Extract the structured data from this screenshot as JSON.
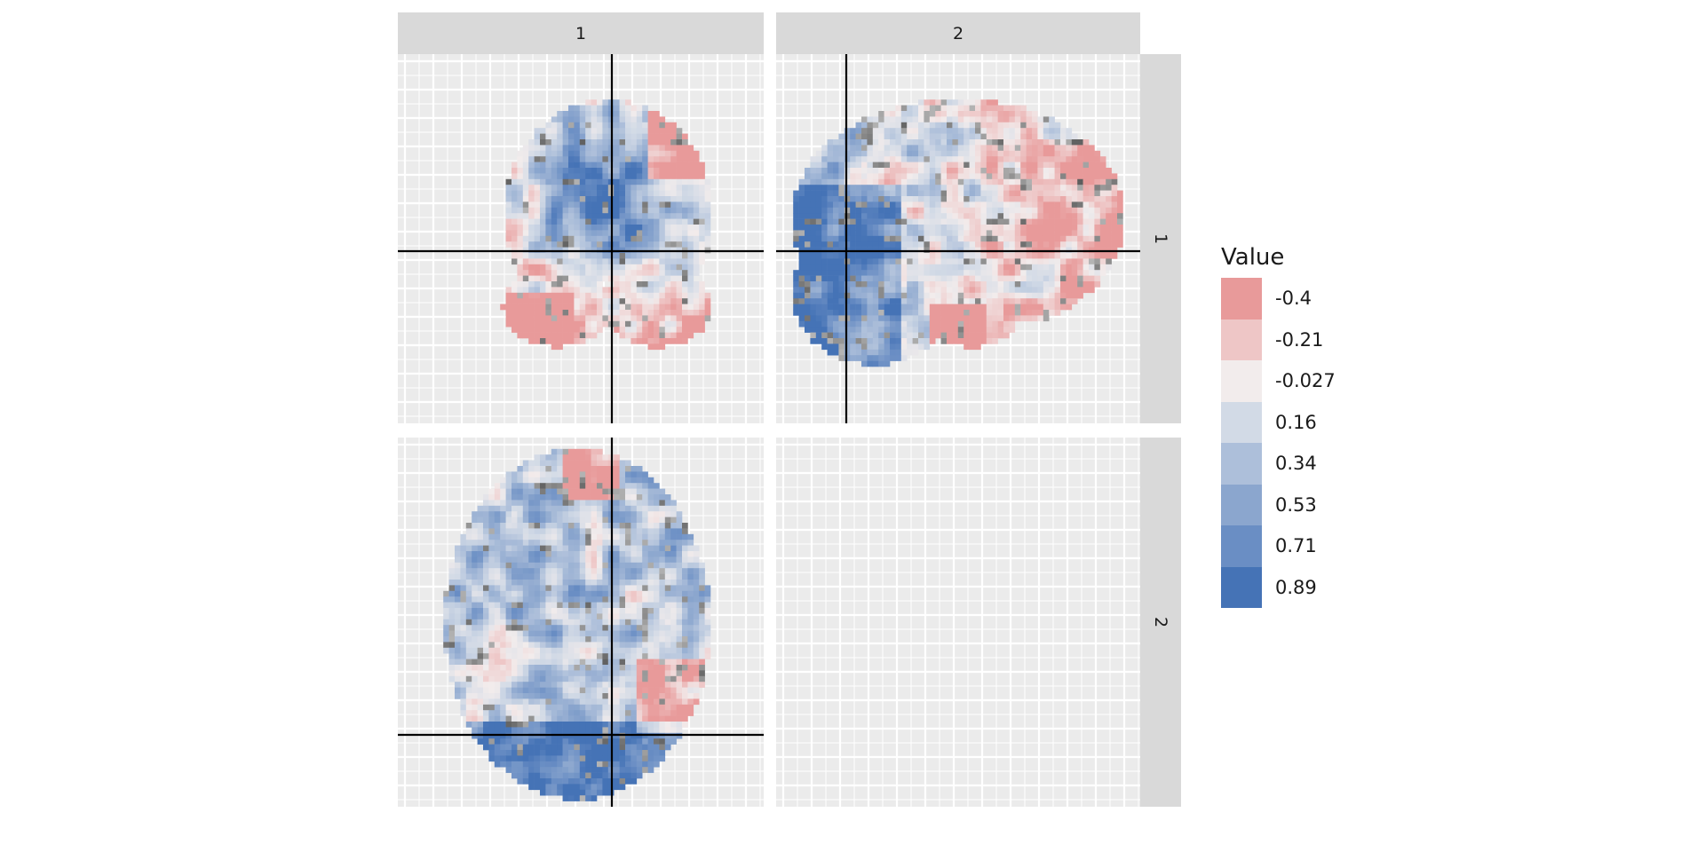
{
  "chart_data": {
    "type": "heatmap",
    "facet_columns": [
      "1",
      "2"
    ],
    "facet_rows": [
      "1",
      "2"
    ],
    "panels": [
      {
        "row": "1",
        "col": "1",
        "view": "coronal",
        "has_data": true
      },
      {
        "row": "1",
        "col": "2",
        "view": "sagittal",
        "has_data": true
      },
      {
        "row": "2",
        "col": "1",
        "view": "axial",
        "has_data": true
      },
      {
        "row": "2",
        "col": "2",
        "view": "empty",
        "has_data": false
      }
    ],
    "legend": {
      "title": "Value",
      "position": "right",
      "entries": [
        {
          "label": "-0.4",
          "value": -0.4,
          "color": "#e89a9a"
        },
        {
          "label": "-0.21",
          "value": -0.21,
          "color": "#eec6c6"
        },
        {
          "label": "-0.027",
          "value": -0.027,
          "color": "#f2ecec"
        },
        {
          "label": "0.16",
          "value": 0.16,
          "color": "#d2dae6"
        },
        {
          "label": "0.34",
          "value": 0.34,
          "color": "#adbfda"
        },
        {
          "label": "0.53",
          "value": 0.53,
          "color": "#8ba6ce"
        },
        {
          "label": "0.71",
          "value": 0.71,
          "color": "#6a8ec4"
        },
        {
          "label": "0.89",
          "value": 0.89,
          "color": "#4573b6"
        }
      ]
    },
    "grid": true,
    "crosshair_color": "#000000",
    "panel_background": "#ebebeb",
    "strip_background": "#d9d9d9"
  }
}
